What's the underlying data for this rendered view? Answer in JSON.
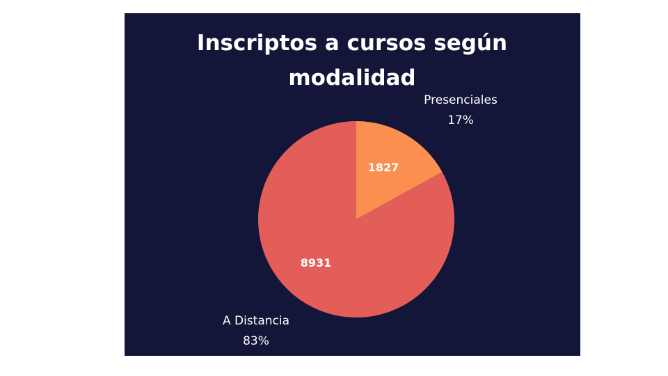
{
  "chart_data": {
    "type": "pie",
    "title_lines": [
      "Inscriptos a cursos según",
      "modalidad"
    ],
    "slices": [
      {
        "label": "Presenciales",
        "value": 1827,
        "percent_label": "17%",
        "color": "#fa8f4f"
      },
      {
        "label": "A Distancia",
        "value": 8931,
        "percent_label": "83%",
        "color": "#e45e59"
      }
    ],
    "background_color": "#131539",
    "text_color": "#ffffff",
    "start_angle_deg": 0,
    "direction": "clockwise"
  }
}
